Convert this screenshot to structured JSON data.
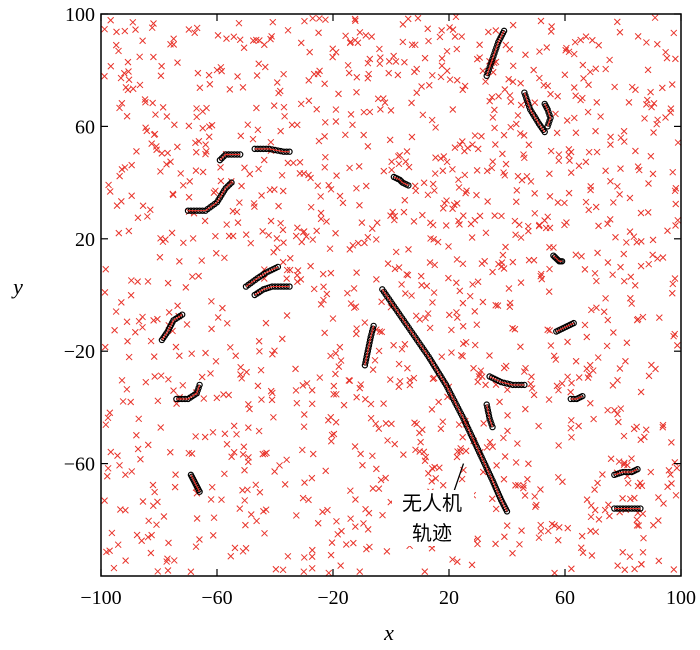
{
  "chart_data": {
    "type": "scatter",
    "title": "",
    "xlabel": "x",
    "ylabel": "y",
    "xlim": [
      -100,
      100
    ],
    "ylim": [
      -100,
      100
    ],
    "xticks": [
      -100,
      -60,
      -20,
      20,
      60,
      100
    ],
    "yticks": [
      -60,
      -20,
      20,
      60,
      100
    ],
    "xtick_labels": [
      "−100",
      "−60",
      "−20",
      "20",
      "60",
      "100"
    ],
    "ytick_labels": [
      "−60",
      "−20",
      "20",
      "60",
      "100"
    ],
    "grid": false,
    "legend": "none",
    "colors": {
      "clutter": "#e8332a",
      "track": "#000000",
      "axis": "#000000"
    },
    "annotation": {
      "lines": [
        "无人机",
        "轨迹"
      ],
      "pointer_from": [
        19,
        -78
      ],
      "pointer_to": [
        25,
        -60
      ]
    },
    "clutter": {
      "description_marker": "x",
      "count": 1300
    },
    "tracks": [
      [
        [
          33,
          78
        ],
        [
          35,
          84
        ],
        [
          37,
          90
        ],
        [
          39,
          94
        ]
      ],
      [
        [
          46,
          72
        ],
        [
          48,
          66
        ],
        [
          51,
          61
        ],
        [
          53,
          58
        ]
      ],
      [
        [
          53,
          68
        ],
        [
          54,
          66
        ],
        [
          55,
          63
        ],
        [
          54,
          60
        ]
      ],
      [
        [
          -59,
          48
        ],
        [
          -57,
          50
        ],
        [
          -55,
          50
        ],
        [
          -52,
          50
        ]
      ],
      [
        [
          -47,
          52
        ],
        [
          -42,
          52
        ],
        [
          -37,
          51
        ],
        [
          -35,
          51
        ]
      ],
      [
        [
          -70,
          30
        ],
        [
          -64,
          30
        ],
        [
          -60,
          33
        ],
        [
          -57,
          38
        ],
        [
          -55,
          40
        ]
      ],
      [
        [
          1,
          42
        ],
        [
          3,
          41
        ],
        [
          4,
          40
        ],
        [
          6,
          39
        ]
      ],
      [
        [
          56,
          14
        ],
        [
          57,
          13
        ],
        [
          58,
          12
        ],
        [
          59,
          12
        ]
      ],
      [
        [
          -50,
          3
        ],
        [
          -46,
          6
        ],
        [
          -43,
          8
        ],
        [
          -39,
          10
        ]
      ],
      [
        [
          -47,
          0
        ],
        [
          -44,
          2
        ],
        [
          -41,
          3
        ],
        [
          -39,
          3
        ],
        [
          -35,
          3
        ]
      ],
      [
        [
          -79,
          -16
        ],
        [
          -77,
          -13
        ],
        [
          -75,
          -9
        ],
        [
          -72,
          -7
        ]
      ],
      [
        [
          -3,
          2
        ],
        [
          5,
          -10
        ],
        [
          13,
          -22
        ],
        [
          19,
          -32
        ],
        [
          25,
          -44
        ],
        [
          30,
          -55
        ],
        [
          35,
          -66
        ],
        [
          38,
          -73
        ],
        [
          40,
          -77
        ]
      ],
      [
        [
          -9,
          -25
        ],
        [
          -8,
          -20
        ],
        [
          -7,
          -15
        ],
        [
          -6,
          -11
        ]
      ],
      [
        [
          57,
          -13
        ],
        [
          59,
          -12
        ],
        [
          61,
          -11
        ],
        [
          63,
          -10
        ]
      ],
      [
        [
          -74,
          -37
        ],
        [
          -70,
          -37
        ],
        [
          -67,
          -35
        ],
        [
          -66,
          -32
        ]
      ],
      [
        [
          34,
          -29
        ],
        [
          38,
          -31
        ],
        [
          42,
          -32
        ],
        [
          46,
          -32
        ]
      ],
      [
        [
          33,
          -39
        ],
        [
          34,
          -44
        ],
        [
          35,
          -47
        ]
      ],
      [
        [
          62,
          -37
        ],
        [
          64,
          -37
        ],
        [
          66,
          -36
        ]
      ],
      [
        [
          77,
          -64
        ],
        [
          80,
          -63
        ],
        [
          83,
          -63
        ],
        [
          85,
          -62
        ]
      ],
      [
        [
          -69,
          -64
        ],
        [
          -68,
          -66
        ],
        [
          -67,
          -68
        ],
        [
          -66,
          -70
        ]
      ],
      [
        [
          77,
          -76
        ],
        [
          80,
          -76
        ],
        [
          83,
          -76
        ],
        [
          86,
          -76
        ]
      ]
    ]
  }
}
